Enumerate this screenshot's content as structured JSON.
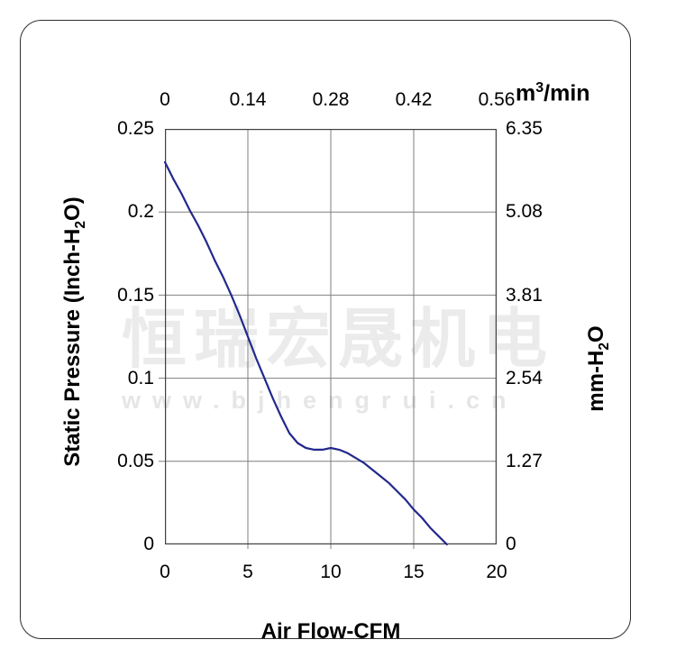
{
  "watermark": {
    "brand": "恒瑞宏晟机电",
    "url": "www.bjhengrui.cn"
  },
  "chart_data": {
    "type": "line",
    "title": "",
    "x_bottom": {
      "label": "Air Flow-CFM",
      "range": [
        0,
        20
      ],
      "tick_values": [
        0,
        5,
        10,
        15,
        20
      ],
      "tick_labels": [
        "0",
        "5",
        "10",
        "15",
        "20"
      ]
    },
    "x_top": {
      "unit_parts": {
        "base": "m",
        "sup": "3",
        "rest": "/min"
      },
      "tick_labels": [
        "0",
        "0.14",
        "0.28",
        "0.42",
        "0.56"
      ]
    },
    "y_left": {
      "label_parts": {
        "pre": "Static Pressure (Inch-H",
        "sub": "2",
        "post": "O)"
      },
      "range": [
        0,
        0.25
      ],
      "tick_values": [
        0.25,
        0.2,
        0.15,
        0.1,
        0.05,
        0
      ],
      "tick_labels": [
        "0.25",
        "0.2",
        "0.15",
        "0.1",
        "0.05",
        "0"
      ]
    },
    "y_right": {
      "label_parts": {
        "pre": "mm-H",
        "sub": "2",
        "post": "O"
      },
      "tick_labels": [
        "6.35",
        "5.08",
        "3.81",
        "2.54",
        "1.27",
        "0"
      ]
    },
    "grid": true,
    "legend": "none",
    "colors": {
      "grid": "#7f7f7f",
      "frame": "#404040"
    },
    "series": [
      {
        "name": "static-pressure-vs-airflow",
        "color": "#23288c",
        "points": [
          [
            0,
            0.23
          ],
          [
            0.5,
            0.22
          ],
          [
            1,
            0.211
          ],
          [
            1.5,
            0.201
          ],
          [
            2,
            0.192
          ],
          [
            2.5,
            0.182
          ],
          [
            3,
            0.171
          ],
          [
            3.5,
            0.161
          ],
          [
            4,
            0.15
          ],
          [
            4.5,
            0.138
          ],
          [
            5,
            0.125
          ],
          [
            5.5,
            0.112
          ],
          [
            6,
            0.1
          ],
          [
            6.5,
            0.088
          ],
          [
            7,
            0.077
          ],
          [
            7.5,
            0.067
          ],
          [
            8,
            0.061
          ],
          [
            8.5,
            0.058
          ],
          [
            9,
            0.057
          ],
          [
            9.5,
            0.057
          ],
          [
            10,
            0.058
          ],
          [
            10.5,
            0.057
          ],
          [
            11,
            0.055
          ],
          [
            11.5,
            0.052
          ],
          [
            12,
            0.049
          ],
          [
            12.5,
            0.045
          ],
          [
            13,
            0.041
          ],
          [
            13.5,
            0.037
          ],
          [
            14,
            0.032
          ],
          [
            14.5,
            0.027
          ],
          [
            15,
            0.021
          ],
          [
            15.5,
            0.016
          ],
          [
            16,
            0.01
          ],
          [
            16.5,
            0.005
          ],
          [
            17,
            0
          ]
        ]
      }
    ]
  }
}
